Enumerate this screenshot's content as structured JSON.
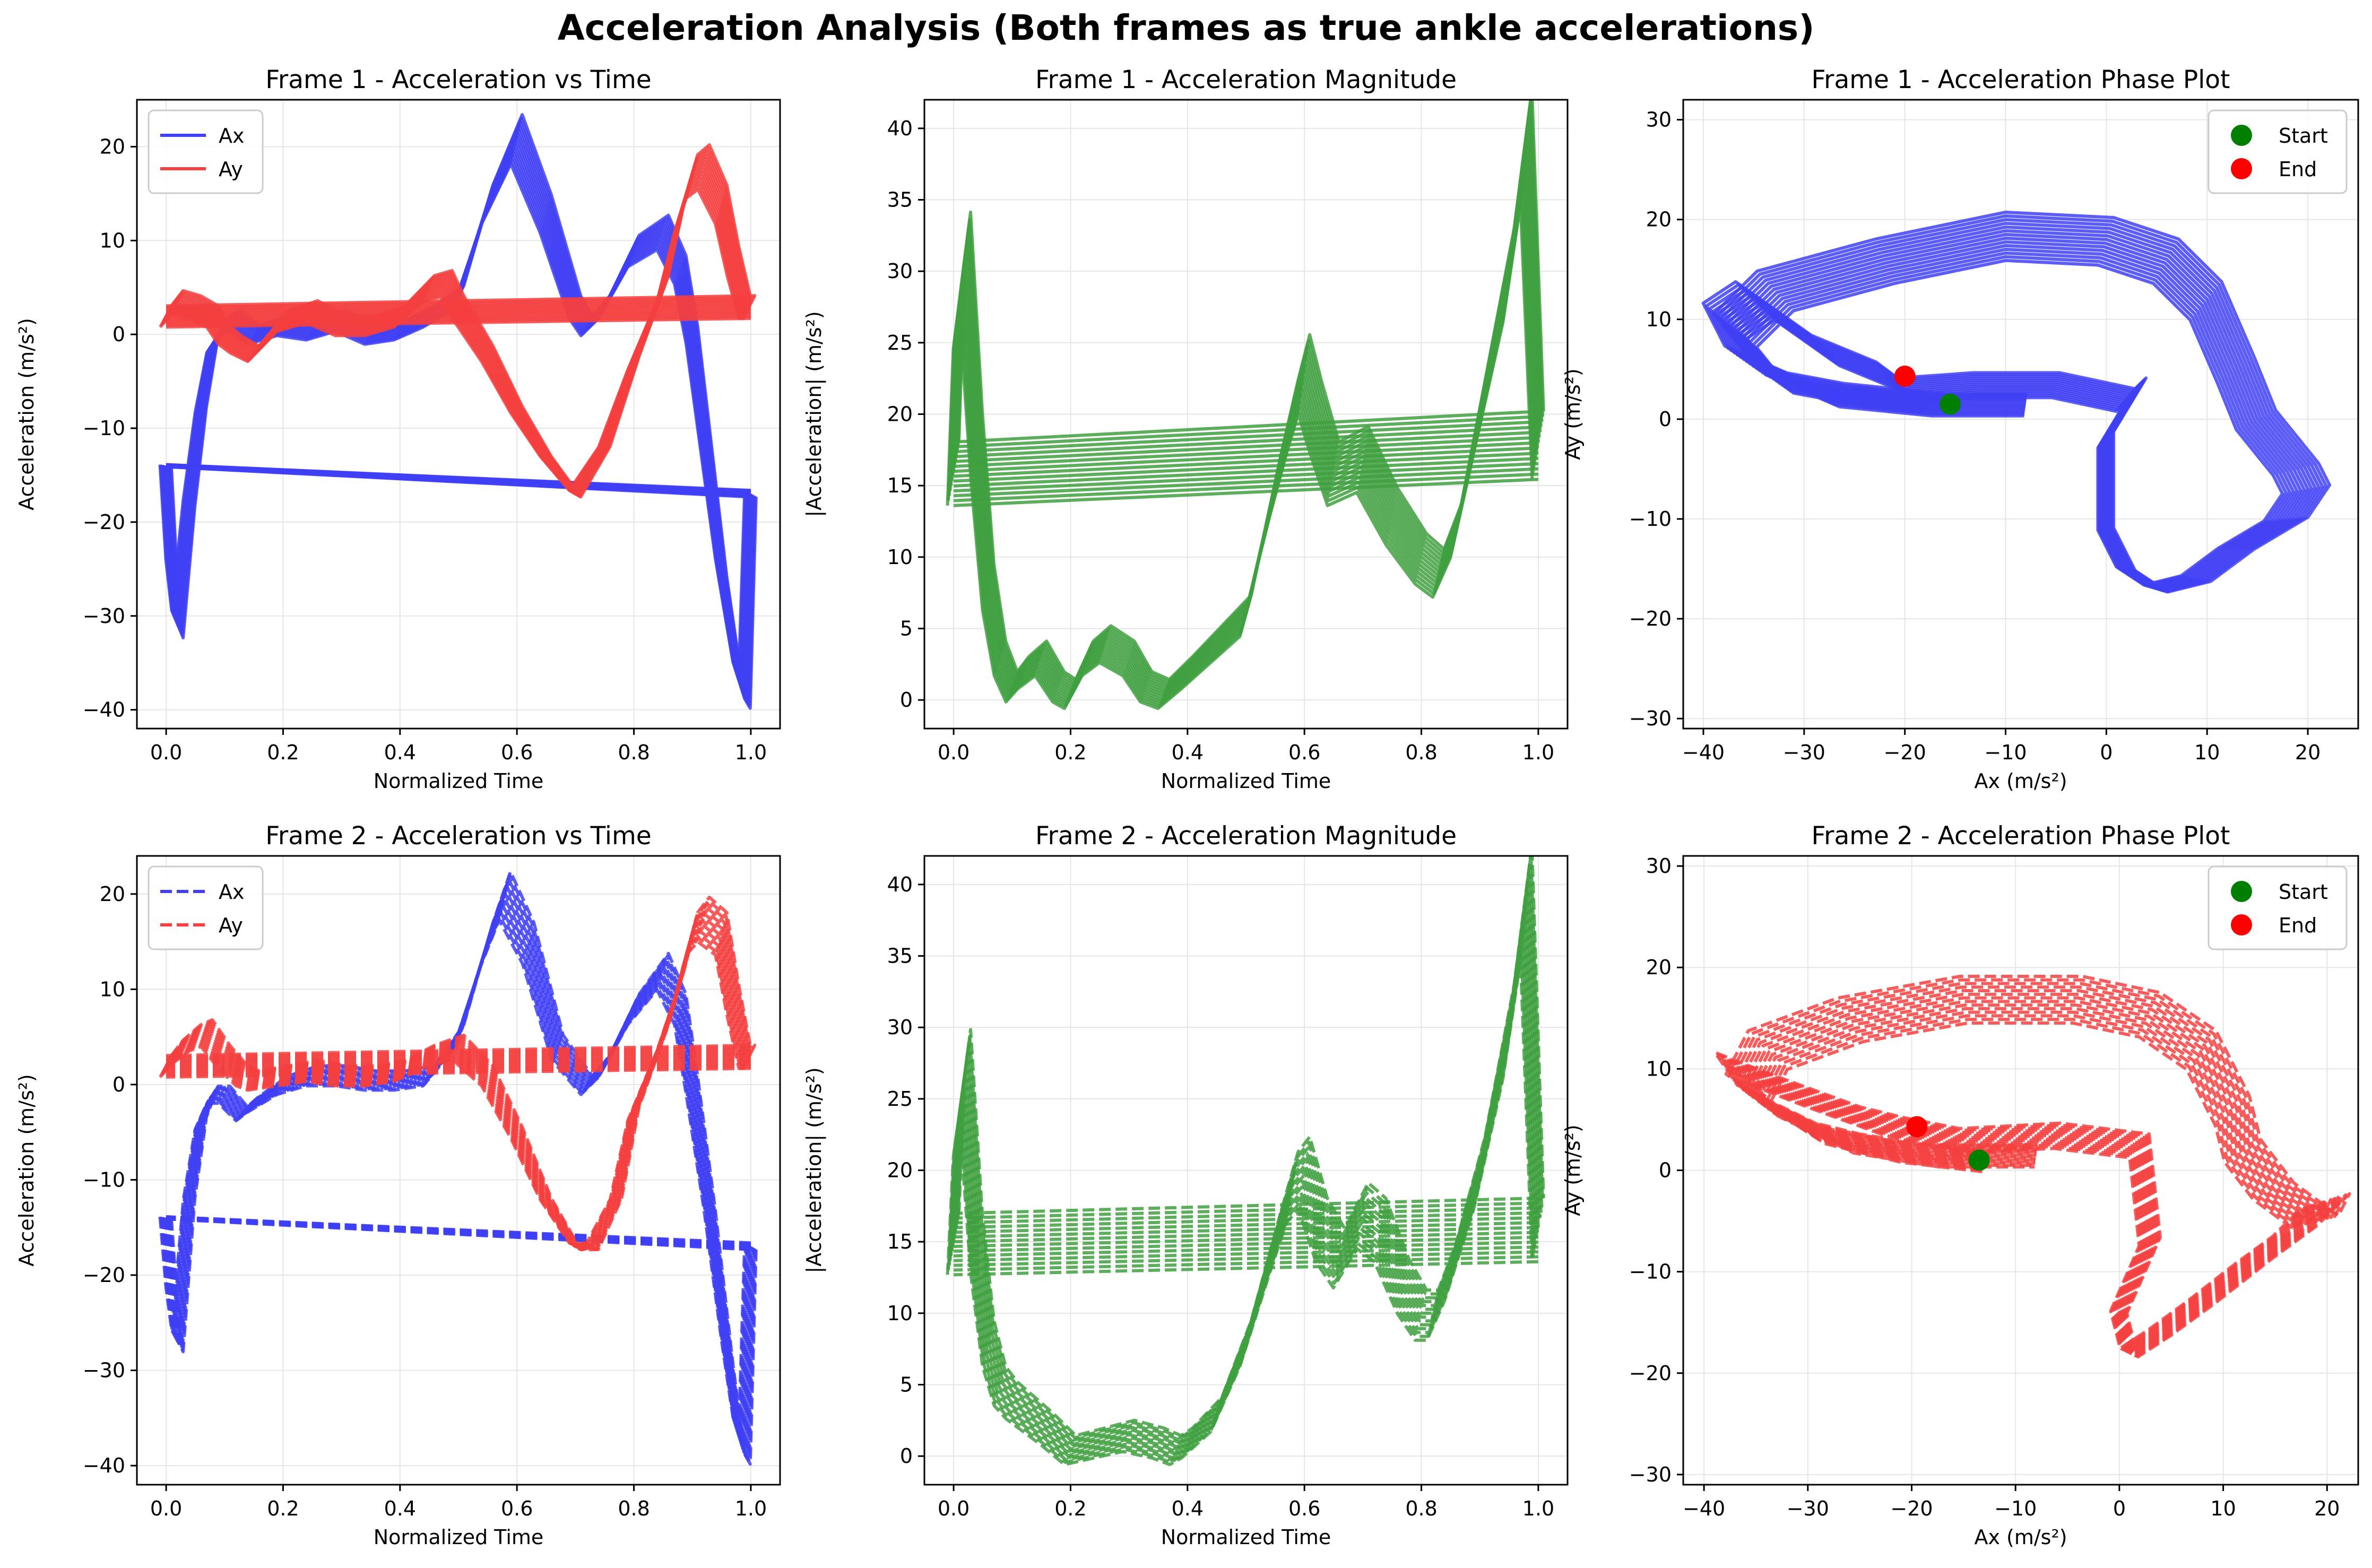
{
  "suptitle": "Acceleration Analysis (Both frames as true ankle accelerations)",
  "colors": {
    "ax": "#4040f5",
    "ay": "#f54040",
    "magnitude": "#40a040",
    "start": "#008000",
    "end": "#ff0000",
    "grid": "#e6e6e6"
  },
  "chart_data": [
    {
      "id": "f1-time",
      "type": "line",
      "title": "Frame 1 - Acceleration vs Time",
      "xlabel": "Normalized Time",
      "ylabel": "Acceleration (m/s²)",
      "xlim": [
        -0.05,
        1.05
      ],
      "ylim": [
        -42,
        25
      ],
      "xticks": [
        0.0,
        0.2,
        0.4,
        0.6,
        0.8,
        1.0
      ],
      "yticks": [
        -40,
        -30,
        -20,
        -10,
        0,
        10,
        20
      ],
      "grid": true,
      "line_style": "solid",
      "legend": "top-left",
      "series": [
        {
          "name": "Ax",
          "color_key": "ax",
          "x": [
            0.0,
            0.01,
            0.02,
            0.04,
            0.06,
            0.08,
            0.1,
            0.12,
            0.15,
            0.2,
            0.25,
            0.3,
            0.35,
            0.4,
            0.45,
            0.5,
            0.55,
            0.6,
            0.65,
            0.7,
            0.72,
            0.75,
            0.8,
            0.85,
            0.88,
            0.9,
            0.92,
            0.95,
            0.98,
            0.99,
            1.0
          ],
          "y": [
            -14,
            -25,
            -31,
            -18,
            -8,
            -1,
            1,
            1.5,
            0,
            1,
            0.5,
            1.5,
            0,
            0.5,
            2,
            4,
            14,
            21,
            13,
            3,
            1,
            3,
            9,
            11,
            7,
            0,
            -10,
            -25,
            -37,
            -38,
            -17
          ]
        },
        {
          "name": "Ay",
          "color_key": "ay",
          "x": [
            0.0,
            0.02,
            0.05,
            0.08,
            0.1,
            0.12,
            0.15,
            0.2,
            0.25,
            0.3,
            0.35,
            0.4,
            0.45,
            0.48,
            0.5,
            0.55,
            0.6,
            0.65,
            0.7,
            0.75,
            0.8,
            0.85,
            0.88,
            0.9,
            0.92,
            0.95,
            0.97,
            0.99,
            1.0
          ],
          "y": [
            2,
            3.5,
            3,
            2,
            0,
            -1,
            -2,
            1.5,
            2.5,
            1,
            1,
            2,
            5,
            5.5,
            3,
            -2,
            -8,
            -13,
            -17,
            -12,
            -3,
            5,
            13,
            17,
            18,
            14,
            8,
            3,
            3
          ]
        }
      ]
    },
    {
      "id": "f1-mag",
      "type": "line",
      "title": "Frame 1 - Acceleration Magnitude",
      "xlabel": "Normalized Time",
      "ylabel": "|Acceleration| (m/s²)",
      "xlim": [
        -0.05,
        1.05
      ],
      "ylim": [
        -2,
        42
      ],
      "xticks": [
        0.0,
        0.2,
        0.4,
        0.6,
        0.8,
        1.0
      ],
      "yticks": [
        0,
        5,
        10,
        15,
        20,
        25,
        30,
        35,
        40
      ],
      "grid": true,
      "line_style": "solid",
      "series": [
        {
          "color_key": "magnitude",
          "x": [
            0.0,
            0.01,
            0.02,
            0.04,
            0.06,
            0.08,
            0.1,
            0.12,
            0.15,
            0.18,
            0.2,
            0.23,
            0.26,
            0.3,
            0.33,
            0.36,
            0.4,
            0.45,
            0.5,
            0.55,
            0.58,
            0.6,
            0.62,
            0.65,
            0.7,
            0.75,
            0.8,
            0.83,
            0.86,
            0.9,
            0.95,
            0.98,
            1.0
          ],
          "y": [
            16,
            28,
            31,
            18,
            8,
            3,
            1,
            2,
            3,
            1,
            0.5,
            3,
            4,
            3,
            1,
            0.5,
            2,
            4,
            6,
            15,
            20,
            23,
            20,
            16,
            17,
            13,
            10,
            9,
            12,
            20,
            30,
            39,
            18
          ]
        }
      ]
    },
    {
      "id": "f1-phase",
      "type": "line",
      "title": "Frame 1 - Acceleration Phase Plot",
      "xlabel": "Ax (m/s²)",
      "ylabel": "Ay (m/s²)",
      "xlim": [
        -42,
        25
      ],
      "ylim": [
        -31,
        32
      ],
      "xticks": [
        -40,
        -30,
        -20,
        -10,
        0,
        10,
        20
      ],
      "yticks": [
        -30,
        -20,
        -10,
        0,
        10,
        20,
        30
      ],
      "grid": true,
      "line_style": "solid",
      "legend": "top-right",
      "series": [
        {
          "color_key": "ax",
          "x": [
            -15.5,
            -25,
            -33,
            -37,
            -33,
            -22,
            -10,
            0,
            6,
            10,
            13,
            15,
            19,
            20,
            18,
            13,
            9,
            5,
            2,
            0,
            0,
            3,
            2,
            -5,
            -13,
            -20,
            -22,
            -28,
            -35,
            -38,
            -36,
            -28,
            -18,
            -8
          ],
          "y": [
            1.5,
            2.5,
            4,
            9,
            13,
            16,
            18.5,
            18,
            16,
            12,
            5,
            0,
            -5,
            -7,
            -10,
            -13,
            -16,
            -17,
            -15,
            -11,
            -2,
            3,
            2,
            3.5,
            3.5,
            3,
            4.5,
            7,
            12,
            10,
            6,
            2.5,
            1.5,
            1.5
          ]
        }
      ],
      "markers": [
        {
          "name": "Start",
          "x": -15.5,
          "y": 1.5,
          "color_key": "start"
        },
        {
          "name": "End",
          "x": -20,
          "y": 4.3,
          "color_key": "end"
        }
      ]
    },
    {
      "id": "f2-time",
      "type": "line",
      "title": "Frame 2 - Acceleration vs Time",
      "xlabel": "Normalized Time",
      "ylabel": "Acceleration (m/s²)",
      "xlim": [
        -0.05,
        1.05
      ],
      "ylim": [
        -42,
        24
      ],
      "xticks": [
        0.0,
        0.2,
        0.4,
        0.6,
        0.8,
        1.0
      ],
      "yticks": [
        -40,
        -30,
        -20,
        -10,
        0,
        10,
        20
      ],
      "grid": true,
      "line_style": "dashed",
      "legend": "top-left",
      "series": [
        {
          "name": "Ax",
          "color_key": "ax",
          "x": [
            0.0,
            0.01,
            0.02,
            0.04,
            0.06,
            0.08,
            0.1,
            0.13,
            0.15,
            0.2,
            0.25,
            0.3,
            0.35,
            0.4,
            0.45,
            0.5,
            0.55,
            0.58,
            0.62,
            0.67,
            0.72,
            0.75,
            0.8,
            0.85,
            0.88,
            0.9,
            0.93,
            0.96,
            0.98,
            0.99,
            1.0
          ],
          "y": [
            -14,
            -22,
            -27,
            -12,
            -4,
            -1,
            -1,
            -3,
            -2,
            0,
            1,
            1,
            0.5,
            0.5,
            1,
            5,
            15,
            20,
            15,
            4,
            0,
            2,
            8,
            12,
            8,
            0,
            -13,
            -28,
            -37,
            -38,
            -17
          ]
        },
        {
          "name": "Ay",
          "color_key": "ay",
          "x": [
            0.0,
            0.02,
            0.05,
            0.07,
            0.1,
            0.13,
            0.15,
            0.2,
            0.25,
            0.3,
            0.35,
            0.4,
            0.45,
            0.5,
            0.55,
            0.6,
            0.65,
            0.7,
            0.73,
            0.77,
            0.8,
            0.85,
            0.88,
            0.9,
            0.92,
            0.95,
            0.97,
            0.99,
            1.0
          ],
          "y": [
            2,
            3.5,
            5,
            5.5,
            3,
            1,
            0.5,
            1,
            1.5,
            1,
            1,
            1.5,
            3,
            4,
            1,
            -5,
            -12,
            -17,
            -17,
            -12,
            -3,
            5,
            11,
            16,
            17.5,
            16,
            9,
            3,
            3
          ]
        }
      ]
    },
    {
      "id": "f2-mag",
      "type": "line",
      "title": "Frame 2 - Acceleration Magnitude",
      "xlabel": "Normalized Time",
      "ylabel": "|Acceleration| (m/s²)",
      "xlim": [
        -0.05,
        1.05
      ],
      "ylim": [
        -2,
        42
      ],
      "xticks": [
        0.0,
        0.2,
        0.4,
        0.6,
        0.8,
        1.0
      ],
      "yticks": [
        0,
        5,
        10,
        15,
        20,
        25,
        30,
        35,
        40
      ],
      "grid": true,
      "line_style": "dashed",
      "series": [
        {
          "color_key": "magnitude",
          "x": [
            0.0,
            0.01,
            0.02,
            0.04,
            0.06,
            0.08,
            0.1,
            0.13,
            0.16,
            0.2,
            0.25,
            0.3,
            0.35,
            0.38,
            0.4,
            0.45,
            0.5,
            0.55,
            0.58,
            0.6,
            0.63,
            0.66,
            0.7,
            0.73,
            0.77,
            0.8,
            0.82,
            0.85,
            0.9,
            0.95,
            0.98,
            1.0
          ],
          "y": [
            15,
            24,
            27,
            15,
            8,
            5,
            4,
            3,
            2,
            0.5,
            1,
            1.5,
            1,
            0.5,
            1,
            3,
            8,
            15,
            19,
            20,
            16,
            14,
            17,
            16,
            12,
            10,
            10,
            13,
            20,
            30,
            39,
            16
          ]
        }
      ]
    },
    {
      "id": "f2-phase",
      "type": "line",
      "title": "Frame 2 - Acceleration Phase Plot",
      "xlabel": "Ax (m/s²)",
      "ylabel": "Ay (m/s²)",
      "xlim": [
        -42,
        23
      ],
      "ylim": [
        -31,
        31
      ],
      "xticks": [
        -40,
        -30,
        -20,
        -10,
        0,
        10,
        20
      ],
      "yticks": [
        -30,
        -20,
        -10,
        0,
        10,
        20,
        30
      ],
      "grid": true,
      "line_style": "dashed",
      "legend": "top-right",
      "series": [
        {
          "color_key": "ay",
          "x": [
            -13.5,
            -22,
            -30,
            -36,
            -34,
            -26,
            -15,
            -4,
            3,
            8,
            11,
            12,
            15,
            19,
            20,
            17,
            13,
            8,
            4,
            1,
            0,
            3,
            2,
            -6,
            -15,
            -20,
            -24,
            -32,
            -37,
            -35,
            -27,
            -18,
            -8
          ],
          "y": [
            1,
            2,
            4,
            8,
            12,
            15,
            17,
            17,
            15.5,
            12,
            6,
            2,
            -2,
            -5,
            -3,
            -6,
            -9,
            -13,
            -16,
            -18,
            -14,
            -7,
            2.5,
            3.5,
            3,
            4,
            5,
            8,
            10,
            7,
            3,
            1.5,
            1.5
          ]
        }
      ],
      "markers": [
        {
          "name": "Start",
          "x": -13.5,
          "y": 1,
          "color_key": "start"
        },
        {
          "name": "End",
          "x": -19.5,
          "y": 4.3,
          "color_key": "end"
        }
      ]
    }
  ]
}
